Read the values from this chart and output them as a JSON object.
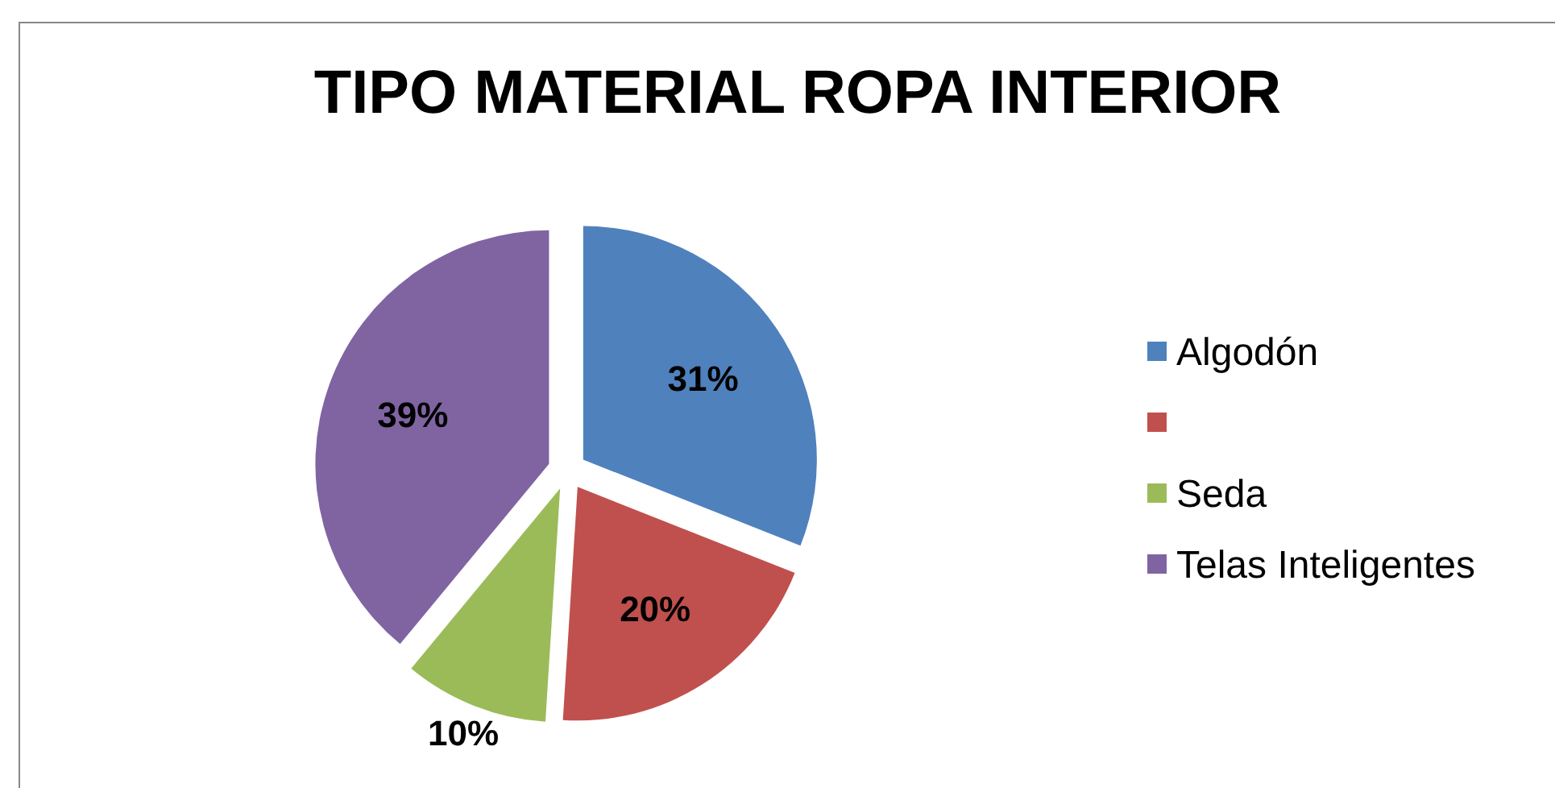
{
  "chart_data": {
    "type": "pie",
    "title": "TIPO MATERIAL ROPA INTERIOR",
    "categories": [
      "Algodón",
      null,
      "Seda",
      "Telas Inteligentes"
    ],
    "values": [
      31,
      20,
      10,
      39
    ],
    "colors": [
      "#4f81bd",
      "#c0504d",
      "#9bbb59",
      "#8064a2"
    ],
    "value_labels": [
      "31%",
      "20%",
      "10%",
      "39%"
    ],
    "legend": "right"
  }
}
